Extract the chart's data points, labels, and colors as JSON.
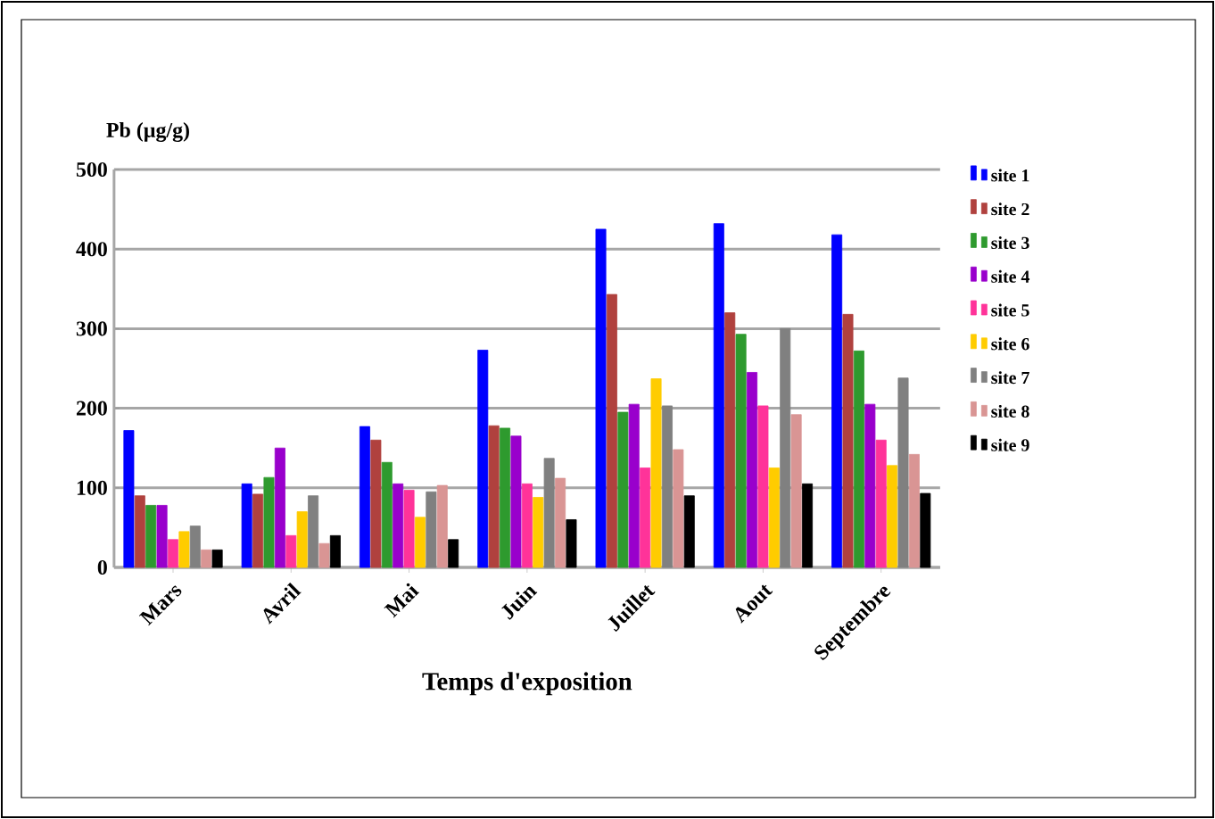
{
  "chart_data": {
    "type": "bar",
    "ylabel": "Pb (µg/g)",
    "xlabel": "Temps d'exposition",
    "categories": [
      "Mars",
      "Avril",
      "Mai",
      "Juin",
      "Juillet",
      "Aout",
      "Septembre"
    ],
    "ylim": [
      0,
      500
    ],
    "yticks": [
      0,
      100,
      200,
      300,
      400,
      500
    ],
    "grid": "y",
    "legend": "right",
    "series": [
      {
        "name": "site 1",
        "color": "#0000ff",
        "values": [
          172,
          105,
          177,
          273,
          425,
          432,
          418
        ]
      },
      {
        "name": "site 2",
        "color": "#b0413e",
        "values": [
          90,
          92,
          160,
          178,
          343,
          320,
          318
        ]
      },
      {
        "name": "site 3",
        "color": "#2e9a2e",
        "values": [
          78,
          113,
          132,
          175,
          195,
          293,
          272
        ]
      },
      {
        "name": "site 4",
        "color": "#9900cc",
        "values": [
          78,
          150,
          105,
          165,
          205,
          245,
          205
        ]
      },
      {
        "name": "site 5",
        "color": "#ff3399",
        "values": [
          35,
          40,
          97,
          105,
          125,
          203,
          160
        ]
      },
      {
        "name": "site 6",
        "color": "#ffcc00",
        "values": [
          45,
          70,
          63,
          88,
          237,
          125,
          128
        ]
      },
      {
        "name": "site 7",
        "color": "#808080",
        "values": [
          52,
          90,
          95,
          137,
          203,
          300,
          238
        ]
      },
      {
        "name": "site 8",
        "color": "#d99594",
        "values": [
          22,
          30,
          103,
          112,
          148,
          192,
          142
        ]
      },
      {
        "name": "site 9",
        "color": "#000000",
        "values": [
          22,
          40,
          35,
          60,
          90,
          105,
          93
        ]
      }
    ]
  }
}
